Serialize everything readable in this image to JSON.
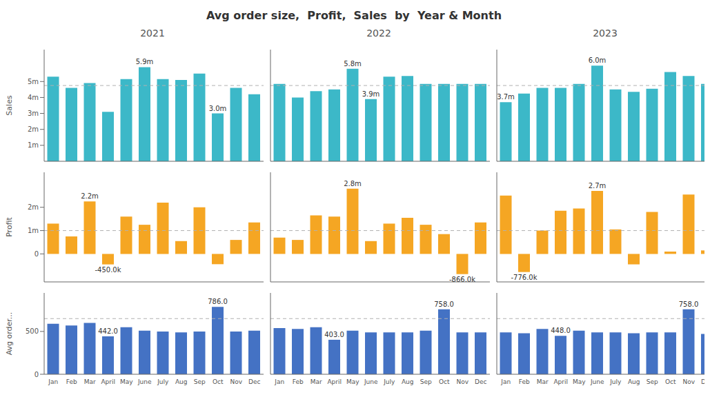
{
  "title": "Avg order size,  Profit,  Sales  by  Year & Month",
  "chart_data": [
    {
      "type": "bar",
      "title": "2021",
      "categories": [
        "Jan",
        "Feb",
        "Mar",
        "April",
        "May",
        "June",
        "July",
        "Aug",
        "Sep",
        "Oct",
        "Nov",
        "Dec"
      ],
      "values": [
        5.3,
        4.6,
        4.9,
        3.1,
        5.15,
        5.9,
        5.15,
        5.1,
        5.5,
        3.0,
        4.6,
        4.2
      ],
      "value_labels": [
        null,
        null,
        null,
        null,
        null,
        "5.9m",
        null,
        null,
        null,
        "3.0m",
        null,
        null
      ],
      "color": "#3cb8c8",
      "ylim": [
        0,
        7.0
      ],
      "yticks": [
        0,
        {
          "value": 1,
          "label": "1m"
        },
        {
          "value": 2,
          "label": "2m"
        },
        {
          "value": 3,
          "label": "3m"
        },
        {
          "value": 4,
          "label": "4m"
        },
        {
          "value": 5,
          "label": "5m"
        }
      ],
      "reference_line": 4.75,
      "ylabel": "Sales",
      "tick_labels": "y"
    },
    {
      "type": "bar",
      "title": "2022",
      "categories": [
        "Jan",
        "Feb",
        "Mar",
        "April",
        "May",
        "June",
        "July",
        "Aug",
        "Sep",
        "Oct",
        "Nov",
        "Dec"
      ],
      "values": [
        4.85,
        4.0,
        4.4,
        4.5,
        5.8,
        3.9,
        5.3,
        5.35,
        4.85,
        4.85,
        4.85,
        4.85
      ],
      "value_labels": [
        null,
        null,
        null,
        null,
        "5.8m",
        "3.9m",
        null,
        null,
        null,
        null,
        null,
        null
      ],
      "color": "#3cb8c8",
      "ylim": [
        0,
        7.0
      ],
      "yticks": [
        0,
        {
          "value": 1,
          "label": "1m"
        },
        {
          "value": 2,
          "label": "2m"
        },
        {
          "value": 3,
          "label": "3m"
        },
        {
          "value": 4,
          "label": "4m"
        },
        {
          "value": 5,
          "label": "5m"
        }
      ],
      "reference_line": 4.75,
      "tick_labels": false
    },
    {
      "type": "bar",
      "title": "2023",
      "categories": [
        "Jan",
        "Feb",
        "Mar",
        "April",
        "May",
        "June",
        "July",
        "Aug",
        "Sep",
        "Oct",
        "Nov",
        "Dec"
      ],
      "values": [
        3.7,
        4.25,
        4.6,
        4.6,
        4.85,
        6.0,
        4.5,
        4.35,
        4.55,
        5.6,
        5.35,
        4.85
      ],
      "value_labels": [
        "3.7m",
        null,
        null,
        null,
        null,
        "6.0m",
        null,
        null,
        null,
        null,
        null,
        null
      ],
      "color": "#3cb8c8",
      "ylim": [
        0,
        7.0
      ],
      "yticks": [
        0,
        {
          "value": 1,
          "label": "1m"
        },
        {
          "value": 2,
          "label": "2m"
        },
        {
          "value": 3,
          "label": "3m"
        },
        {
          "value": 4,
          "label": "4m"
        },
        {
          "value": 5,
          "label": "5m"
        }
      ],
      "reference_line": 4.75,
      "tick_labels": false
    },
    {
      "type": "bar",
      "categories": [
        "Jan",
        "Feb",
        "Mar",
        "April",
        "May",
        "June",
        "July",
        "Aug",
        "Sep",
        "Oct",
        "Nov",
        "Dec"
      ],
      "values": [
        1.3,
        0.75,
        2.25,
        -0.45,
        1.6,
        1.25,
        2.2,
        0.55,
        2.0,
        -0.441,
        0.6,
        1.35
      ],
      "value_labels": [
        null,
        null,
        "2.2m",
        "-450.0k",
        null,
        null,
        null,
        null,
        null,
        null,
        null,
        null
      ],
      "color": "#f5a623",
      "ylim": [
        -1.2,
        3.5
      ],
      "yticks": [
        0,
        {
          "value": 1,
          "label": "1m"
        },
        {
          "value": 2,
          "label": "2m"
        }
      ],
      "reference_line": 1.0,
      "ylabel": "Profit",
      "tick_labels": "y"
    },
    {
      "type": "bar",
      "categories": [
        "Jan",
        "Feb",
        "Mar",
        "April",
        "May",
        "June",
        "July",
        "Aug",
        "Sep",
        "Oct",
        "Nov",
        "Dec"
      ],
      "values": [
        0.7,
        0.6,
        1.65,
        1.6,
        2.8,
        0.55,
        1.3,
        1.55,
        1.25,
        0.85,
        -0.866,
        1.35
      ],
      "value_labels": [
        null,
        null,
        null,
        null,
        "2.8m",
        null,
        null,
        null,
        null,
        null,
        "-866.0k",
        null
      ],
      "color": "#f5a623",
      "ylim": [
        -1.2,
        3.5
      ],
      "yticks": [
        0,
        {
          "value": 1,
          "label": "1m"
        },
        {
          "value": 2,
          "label": "2m"
        }
      ],
      "reference_line": 1.0,
      "tick_labels": false
    },
    {
      "type": "bar",
      "categories": [
        "Jan",
        "Feb",
        "Mar",
        "April",
        "May",
        "June",
        "July",
        "Aug",
        "Sep",
        "Oct",
        "Nov",
        "Dec"
      ],
      "values": [
        2.5,
        -0.776,
        1.0,
        1.85,
        1.95,
        2.7,
        1.05,
        -0.448,
        1.8,
        0.1,
        2.55,
        0.15
      ],
      "value_labels": [
        null,
        "-776.0k",
        null,
        null,
        null,
        "2.7m",
        null,
        null,
        null,
        null,
        null,
        null
      ],
      "color": "#f5a623",
      "ylim": [
        -1.2,
        3.5
      ],
      "yticks": [
        0,
        {
          "value": 1,
          "label": "1m"
        },
        {
          "value": 2,
          "label": "2m"
        }
      ],
      "reference_line": 1.0,
      "tick_labels": false
    },
    {
      "type": "bar",
      "categories": [
        "Jan",
        "Feb",
        "Mar",
        "April",
        "May",
        "June",
        "July",
        "Aug",
        "Sep",
        "Oct",
        "Nov",
        "Dec"
      ],
      "values": [
        590,
        570,
        600,
        442,
        550,
        510,
        500,
        490,
        500,
        786,
        500,
        510
      ],
      "value_labels": [
        null,
        null,
        null,
        "442.0",
        null,
        null,
        null,
        null,
        null,
        "786.0",
        null,
        null
      ],
      "color": "#4472c4",
      "ylim": [
        0,
        950
      ],
      "yticks": [
        0,
        500
      ],
      "reference_line": 650,
      "ylabel": "Avg order..."
    },
    {
      "type": "bar",
      "categories": [
        "Jan",
        "Feb",
        "Mar",
        "April",
        "May",
        "June",
        "July",
        "Aug",
        "Sep",
        "Oct",
        "Nov",
        "Dec"
      ],
      "values": [
        540,
        530,
        550,
        403,
        510,
        490,
        490,
        490,
        510,
        758,
        490,
        490
      ],
      "value_labels": [
        null,
        null,
        null,
        "403.0",
        null,
        null,
        null,
        null,
        null,
        "758.0",
        null,
        null
      ],
      "color": "#4472c4",
      "ylim": [
        0,
        950
      ],
      "yticks": [
        0,
        500
      ],
      "reference_line": 650,
      "tick_labels": "x"
    },
    {
      "type": "bar",
      "categories": [
        "Jan",
        "Feb",
        "Mar",
        "April",
        "May",
        "June",
        "July",
        "Aug",
        "Sep",
        "Oct",
        "Nov",
        "Dec"
      ],
      "values": [
        490,
        480,
        530,
        448,
        510,
        490,
        490,
        480,
        490,
        490,
        758,
        470
      ],
      "value_labels": [
        null,
        null,
        null,
        "448.0",
        null,
        null,
        null,
        null,
        null,
        null,
        "758.0",
        null
      ],
      "color": "#4472c4",
      "ylim": [
        0,
        950
      ],
      "yticks": [
        0,
        500
      ],
      "reference_line": 650,
      "tick_labels": "x"
    }
  ]
}
